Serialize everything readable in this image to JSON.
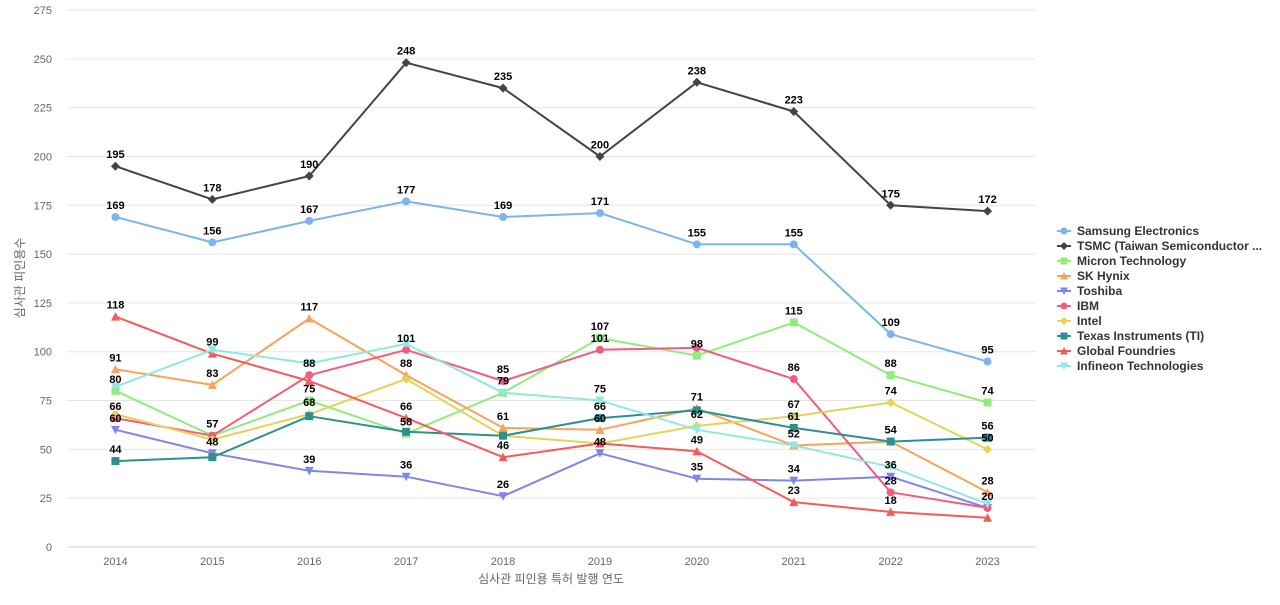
{
  "chart_data": {
    "type": "line",
    "x": [
      "2014",
      "2015",
      "2016",
      "2017",
      "2018",
      "2019",
      "2020",
      "2021",
      "2022",
      "2023"
    ],
    "xlabel": "심사관 피인용 특허 발행 연도",
    "ylabel": "심사관 피인용수",
    "ylim": [
      0,
      275
    ],
    "yticks": [
      0,
      25,
      50,
      75,
      100,
      125,
      150,
      175,
      200,
      225,
      250,
      275
    ],
    "grid": true,
    "legend": "right",
    "series": [
      {
        "name": "Samsung Electronics",
        "color": "#7cb5ec",
        "marker": "circle",
        "values": [
          169,
          156,
          167,
          177,
          169,
          171,
          155,
          155,
          109,
          95
        ]
      },
      {
        "name": "TSMC (Taiwan Semiconductor ...",
        "color": "#434348",
        "marker": "diamond",
        "values": [
          195,
          178,
          190,
          248,
          235,
          200,
          238,
          223,
          175,
          172
        ]
      },
      {
        "name": "Micron Technology",
        "color": "#90ed7d",
        "marker": "square",
        "values": [
          80,
          57,
          75,
          58,
          79,
          107,
          98,
          115,
          88,
          74
        ]
      },
      {
        "name": "SK Hynix",
        "color": "#f7a35c",
        "marker": "triangle",
        "values": [
          91,
          83,
          117,
          88,
          61,
          60,
          71,
          52,
          54,
          28
        ]
      },
      {
        "name": "Toshiba",
        "color": "#8085e9",
        "marker": "triangle-down",
        "values": [
          60,
          48,
          39,
          36,
          26,
          48,
          35,
          34,
          36,
          20
        ]
      },
      {
        "name": "IBM",
        "color": "#f15c80",
        "marker": "circle",
        "values": [
          66,
          57,
          88,
          101,
          85,
          101,
          102,
          86,
          28,
          20
        ]
      },
      {
        "name": "Intel",
        "color": "#e4d354",
        "marker": "diamond",
        "values": [
          68,
          55,
          68,
          86,
          57,
          53,
          62,
          67,
          74,
          50
        ]
      },
      {
        "name": "Texas Instruments (TI)",
        "color": "#2b908f",
        "marker": "square",
        "values": [
          44,
          46,
          67,
          59,
          57,
          66,
          70,
          61,
          54,
          56
        ]
      },
      {
        "name": "Global Foundries",
        "color": "#f45b5b",
        "marker": "triangle",
        "values": [
          118,
          99,
          85,
          66,
          46,
          53,
          49,
          23,
          18,
          15
        ]
      },
      {
        "name": "Infineon Technologies",
        "color": "#91e8e1",
        "marker": "triangle-down",
        "values": [
          82,
          101,
          94,
          104,
          79,
          75,
          60,
          52,
          41,
          22
        ]
      }
    ],
    "data_labels": [
      {
        "x": "2014",
        "text": "195",
        "value": 195
      },
      {
        "x": "2014",
        "text": "169",
        "value": 169
      },
      {
        "x": "2014",
        "text": "118",
        "value": 118
      },
      {
        "x": "2014",
        "text": "91",
        "value": 91
      },
      {
        "x": "2014",
        "text": "80",
        "value": 80
      },
      {
        "x": "2014",
        "text": "66",
        "value": 66
      },
      {
        "x": "2014",
        "text": "60",
        "value": 60
      },
      {
        "x": "2014",
        "text": "44",
        "value": 44
      },
      {
        "x": "2015",
        "text": "178",
        "value": 178
      },
      {
        "x": "2015",
        "text": "156",
        "value": 156
      },
      {
        "x": "2015",
        "text": "99",
        "value": 99
      },
      {
        "x": "2015",
        "text": "83",
        "value": 83
      },
      {
        "x": "2015",
        "text": "57",
        "value": 57
      },
      {
        "x": "2015",
        "text": "48",
        "value": 48
      },
      {
        "x": "2016",
        "text": "190",
        "value": 190
      },
      {
        "x": "2016",
        "text": "167",
        "value": 167
      },
      {
        "x": "2016",
        "text": "117",
        "value": 117
      },
      {
        "x": "2016",
        "text": "88",
        "value": 88
      },
      {
        "x": "2016",
        "text": "75",
        "value": 75
      },
      {
        "x": "2016",
        "text": "68",
        "value": 68
      },
      {
        "x": "2016",
        "text": "39",
        "value": 39
      },
      {
        "x": "2017",
        "text": "248",
        "value": 248
      },
      {
        "x": "2017",
        "text": "177",
        "value": 177
      },
      {
        "x": "2017",
        "text": "101",
        "value": 101
      },
      {
        "x": "2017",
        "text": "88",
        "value": 88
      },
      {
        "x": "2017",
        "text": "66",
        "value": 66
      },
      {
        "x": "2017",
        "text": "58",
        "value": 58
      },
      {
        "x": "2017",
        "text": "36",
        "value": 36
      },
      {
        "x": "2018",
        "text": "235",
        "value": 235
      },
      {
        "x": "2018",
        "text": "169",
        "value": 169
      },
      {
        "x": "2018",
        "text": "85",
        "value": 85
      },
      {
        "x": "2018",
        "text": "79",
        "value": 79
      },
      {
        "x": "2018",
        "text": "61",
        "value": 61
      },
      {
        "x": "2018",
        "text": "46",
        "value": 46
      },
      {
        "x": "2018",
        "text": "26",
        "value": 26
      },
      {
        "x": "2019",
        "text": "200",
        "value": 200
      },
      {
        "x": "2019",
        "text": "171",
        "value": 171
      },
      {
        "x": "2019",
        "text": "107",
        "value": 107
      },
      {
        "x": "2019",
        "text": "101",
        "value": 101
      },
      {
        "x": "2019",
        "text": "75",
        "value": 75
      },
      {
        "x": "2019",
        "text": "66",
        "value": 66
      },
      {
        "x": "2019",
        "text": "60",
        "value": 60
      },
      {
        "x": "2019",
        "text": "48",
        "value": 48
      },
      {
        "x": "2020",
        "text": "238",
        "value": 238
      },
      {
        "x": "2020",
        "text": "155",
        "value": 155
      },
      {
        "x": "2020",
        "text": "98",
        "value": 98
      },
      {
        "x": "2020",
        "text": "71",
        "value": 71
      },
      {
        "x": "2020",
        "text": "62",
        "value": 62
      },
      {
        "x": "2020",
        "text": "49",
        "value": 49
      },
      {
        "x": "2020",
        "text": "35",
        "value": 35
      },
      {
        "x": "2021",
        "text": "223",
        "value": 223
      },
      {
        "x": "2021",
        "text": "155",
        "value": 155
      },
      {
        "x": "2021",
        "text": "115",
        "value": 115
      },
      {
        "x": "2021",
        "text": "86",
        "value": 86
      },
      {
        "x": "2021",
        "text": "67",
        "value": 67
      },
      {
        "x": "2021",
        "text": "61",
        "value": 61
      },
      {
        "x": "2021",
        "text": "52",
        "value": 52
      },
      {
        "x": "2021",
        "text": "34",
        "value": 34
      },
      {
        "x": "2021",
        "text": "23",
        "value": 23
      },
      {
        "x": "2022",
        "text": "175",
        "value": 175
      },
      {
        "x": "2022",
        "text": "109",
        "value": 109
      },
      {
        "x": "2022",
        "text": "88",
        "value": 88
      },
      {
        "x": "2022",
        "text": "74",
        "value": 74
      },
      {
        "x": "2022",
        "text": "54",
        "value": 54
      },
      {
        "x": "2022",
        "text": "36",
        "value": 36
      },
      {
        "x": "2022",
        "text": "28",
        "value": 28
      },
      {
        "x": "2022",
        "text": "18",
        "value": 18
      },
      {
        "x": "2023",
        "text": "172",
        "value": 172
      },
      {
        "x": "2023",
        "text": "95",
        "value": 95
      },
      {
        "x": "2023",
        "text": "74",
        "value": 74
      },
      {
        "x": "2023",
        "text": "56",
        "value": 56
      },
      {
        "x": "2023",
        "text": "50",
        "value": 50
      },
      {
        "x": "2023",
        "text": "28",
        "value": 28
      },
      {
        "x": "2023",
        "text": "20",
        "value": 20
      }
    ]
  }
}
